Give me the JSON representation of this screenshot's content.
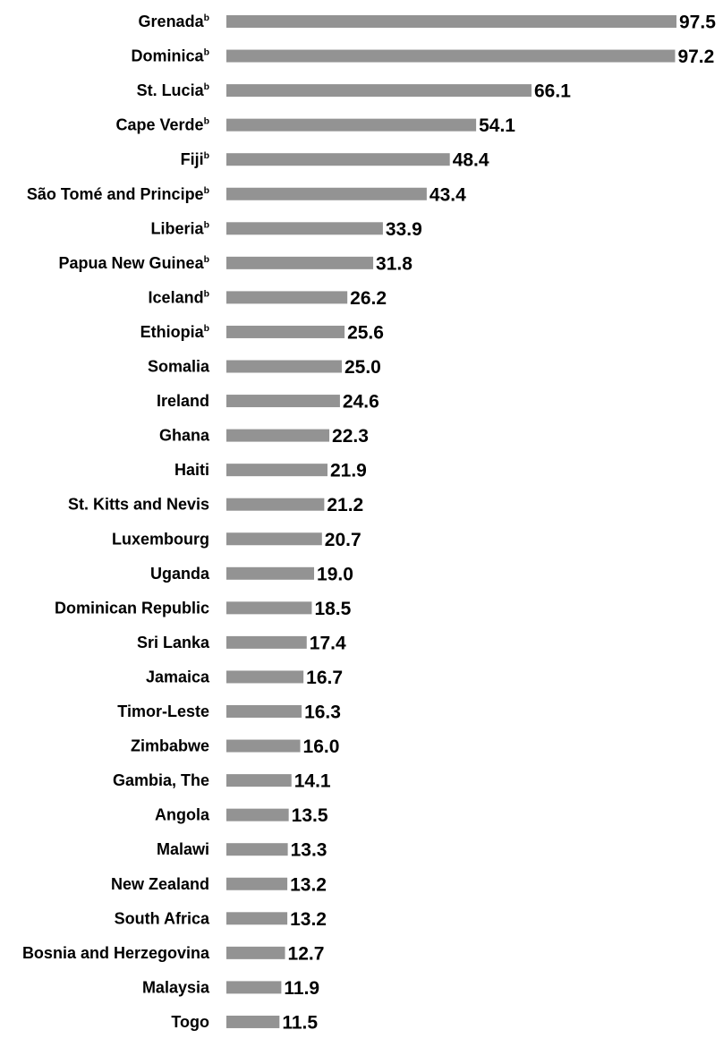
{
  "chart_data": {
    "type": "bar",
    "orientation": "horizontal",
    "bar_color": "#939393",
    "grid": false,
    "legend": "none",
    "xlim": [
      0,
      97.5
    ],
    "categories": [
      {
        "name": "Grenada",
        "sup": "b"
      },
      {
        "name": "Dominica",
        "sup": "b"
      },
      {
        "name": "St. Lucia",
        "sup": "b"
      },
      {
        "name": "Cape Verde",
        "sup": "b"
      },
      {
        "name": "Fiji",
        "sup": "b"
      },
      {
        "name": "São Tomé and Principe",
        "sup": "b"
      },
      {
        "name": "Liberia",
        "sup": "b"
      },
      {
        "name": "Papua New Guinea",
        "sup": "b"
      },
      {
        "name": "Iceland",
        "sup": "b"
      },
      {
        "name": "Ethiopia",
        "sup": "b"
      },
      {
        "name": "Somalia",
        "sup": ""
      },
      {
        "name": "Ireland",
        "sup": ""
      },
      {
        "name": "Ghana",
        "sup": ""
      },
      {
        "name": "Haiti",
        "sup": ""
      },
      {
        "name": "St. Kitts and Nevis",
        "sup": ""
      },
      {
        "name": "Luxembourg",
        "sup": ""
      },
      {
        "name": "Uganda",
        "sup": ""
      },
      {
        "name": "Dominican Republic",
        "sup": ""
      },
      {
        "name": "Sri Lanka",
        "sup": ""
      },
      {
        "name": "Jamaica",
        "sup": ""
      },
      {
        "name": "Timor-Leste",
        "sup": ""
      },
      {
        "name": "Zimbabwe",
        "sup": ""
      },
      {
        "name": "Gambia, The",
        "sup": ""
      },
      {
        "name": "Angola",
        "sup": ""
      },
      {
        "name": "Malawi",
        "sup": ""
      },
      {
        "name": "New Zealand",
        "sup": ""
      },
      {
        "name": "South Africa",
        "sup": ""
      },
      {
        "name": "Bosnia and Herzegovina",
        "sup": ""
      },
      {
        "name": "Malaysia",
        "sup": ""
      },
      {
        "name": "Togo",
        "sup": ""
      }
    ],
    "values": [
      97.5,
      97.2,
      66.1,
      54.1,
      48.4,
      43.4,
      33.9,
      31.8,
      26.2,
      25.6,
      25.0,
      24.6,
      22.3,
      21.9,
      21.2,
      20.7,
      19.0,
      18.5,
      17.4,
      16.7,
      16.3,
      16.0,
      14.1,
      13.5,
      13.3,
      13.2,
      13.2,
      12.7,
      11.9,
      11.5
    ],
    "value_labels": [
      "97.5",
      "97.2",
      "66.1",
      "54.1",
      "48.4",
      "43.4",
      "33.9",
      "31.8",
      "26.2",
      "25.6",
      "25.0",
      "24.6",
      "22.3",
      "21.9",
      "21.2",
      "20.7",
      "19.0",
      "18.5",
      "17.4",
      "16.7",
      "16.3",
      "16.0",
      "14.1",
      "13.5",
      "13.3",
      "13.2",
      "13.2",
      "12.7",
      "11.9",
      "11.5"
    ]
  }
}
